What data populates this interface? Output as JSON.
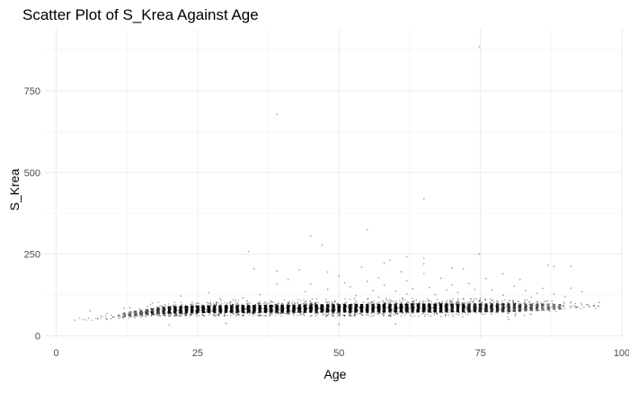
{
  "chart_data": {
    "type": "scatter",
    "title": "Scatter Plot of S_Krea Against Age",
    "xlabel": "Age",
    "ylabel": "S_Krea",
    "xlim": [
      -2,
      100
    ],
    "ylim": [
      -10,
      940
    ],
    "x_ticks": [
      0,
      25,
      50,
      75,
      100
    ],
    "y_ticks": [
      0,
      250,
      500,
      750
    ],
    "grid": true,
    "point_color": "#000000",
    "band": {
      "age_min": 3,
      "age_max": 96,
      "density_by_age": [
        [
          3,
          1
        ],
        [
          6,
          2
        ],
        [
          9,
          4
        ],
        [
          12,
          8
        ],
        [
          15,
          14
        ],
        [
          18,
          24
        ],
        [
          21,
          34
        ],
        [
          30,
          40
        ],
        [
          45,
          42
        ],
        [
          55,
          42
        ],
        [
          62,
          40
        ],
        [
          70,
          32
        ],
        [
          78,
          26
        ],
        [
          85,
          14
        ],
        [
          90,
          6
        ],
        [
          96,
          2
        ]
      ],
      "median_krea_by_age": [
        [
          3,
          48
        ],
        [
          6,
          52
        ],
        [
          10,
          57
        ],
        [
          14,
          66
        ],
        [
          18,
          75
        ],
        [
          25,
          80
        ],
        [
          40,
          82
        ],
        [
          55,
          84
        ],
        [
          65,
          86
        ],
        [
          75,
          88
        ],
        [
          85,
          90
        ],
        [
          96,
          92
        ]
      ],
      "low_tail_by_age": [
        [
          3,
          44
        ],
        [
          10,
          52
        ],
        [
          18,
          60
        ],
        [
          30,
          62
        ],
        [
          60,
          60
        ],
        [
          80,
          58
        ],
        [
          96,
          80
        ]
      ],
      "high_tail_by_age": [
        [
          3,
          55
        ],
        [
          8,
          70
        ],
        [
          14,
          90
        ],
        [
          20,
          108
        ],
        [
          40,
          112
        ],
        [
          60,
          115
        ],
        [
          80,
          112
        ],
        [
          96,
          100
        ]
      ]
    },
    "points": [
      [
        74.8,
        885
      ],
      [
        39.0,
        678
      ],
      [
        65.0,
        420
      ],
      [
        55.0,
        325
      ],
      [
        45.0,
        305
      ],
      [
        47.0,
        278
      ],
      [
        34.0,
        258
      ],
      [
        74.8,
        250
      ],
      [
        62.0,
        242
      ],
      [
        65.0,
        238
      ],
      [
        59.0,
        232
      ],
      [
        58.0,
        222
      ],
      [
        65.0,
        220
      ],
      [
        87.0,
        216
      ],
      [
        91.0,
        213
      ],
      [
        88.0,
        212
      ],
      [
        54.0,
        210
      ],
      [
        70.0,
        208
      ],
      [
        72.0,
        205
      ],
      [
        35.0,
        205
      ],
      [
        43.0,
        202
      ],
      [
        39.0,
        198
      ],
      [
        61.0,
        196
      ],
      [
        48.0,
        195
      ],
      [
        65.0,
        190
      ],
      [
        79.0,
        190
      ],
      [
        50.0,
        182
      ],
      [
        57.0,
        178
      ],
      [
        68.0,
        176
      ],
      [
        76.0,
        175
      ],
      [
        82.0,
        172
      ],
      [
        41.0,
        172
      ],
      [
        62.0,
        168
      ],
      [
        55.0,
        166
      ],
      [
        51.0,
        162
      ],
      [
        73.0,
        160
      ],
      [
        39.0,
        158
      ],
      [
        45.0,
        158
      ],
      [
        70.0,
        156
      ],
      [
        58.0,
        155
      ],
      [
        81.0,
        152
      ],
      [
        52.0,
        150
      ],
      [
        66.0,
        148
      ],
      [
        91.0,
        146
      ],
      [
        86.0,
        145
      ],
      [
        63.0,
        144
      ],
      [
        74.0,
        142
      ],
      [
        48.0,
        142
      ],
      [
        69.0,
        140
      ],
      [
        77.0,
        140
      ],
      [
        56.0,
        138
      ],
      [
        83.0,
        138
      ],
      [
        60.0,
        136
      ],
      [
        93.0,
        135
      ],
      [
        44.0,
        135
      ],
      [
        27.0,
        132
      ],
      [
        71.0,
        132
      ],
      [
        85.0,
        130
      ],
      [
        62.0,
        128
      ],
      [
        88.0,
        128
      ],
      [
        36.0,
        126
      ],
      [
        67.0,
        126
      ],
      [
        79.0,
        124
      ],
      [
        53.0,
        123
      ],
      [
        22.0,
        122
      ],
      [
        90.0,
        120
      ],
      [
        84.0,
        118
      ],
      [
        57.0,
        118
      ],
      [
        33.0,
        116
      ],
      [
        75.0,
        115
      ],
      [
        29.0,
        114
      ],
      [
        94.0,
        96
      ],
      [
        95.0,
        92
      ],
      [
        92.0,
        88
      ],
      [
        96.0,
        102
      ],
      [
        6.0,
        76
      ],
      [
        9.0,
        68
      ],
      [
        13.0,
        86
      ],
      [
        17.0,
        100
      ],
      [
        12.0,
        84
      ],
      [
        20.0,
        33
      ],
      [
        30.0,
        38
      ],
      [
        50.0,
        35
      ],
      [
        60.0,
        36
      ],
      [
        80.0,
        50
      ]
    ]
  }
}
